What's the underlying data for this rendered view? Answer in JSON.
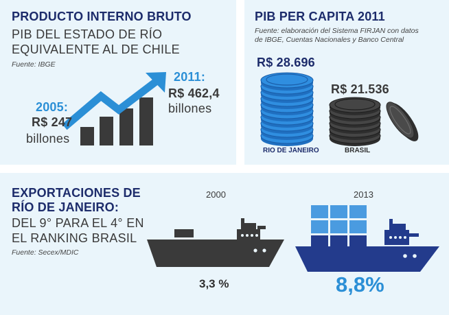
{
  "gdp": {
    "title": "PRODUCTO INTERNO BRUTO",
    "subtitle_line1": "PIB DEL ESTADO DE RÍO",
    "subtitle_line2": "EQUIVALENTE AL DE CHILE",
    "source": "Fuente: IBGE",
    "year_a": "2005:",
    "value_a": "R$ 247",
    "unit_a": "billones",
    "year_b": "2011:",
    "value_b": "R$ 462,4",
    "unit_b": "billones"
  },
  "per_capita": {
    "title": "PIB PER CAPITA 2011",
    "source_line1": "Fuente: elaboración del Sistema FIRJAN con datos",
    "source_line2": "de IBGE, Cuentas Nacionales y Banco Central",
    "rio_value": "R$ 28.696",
    "rio_label": "RIO DE JANEIRO",
    "brasil_value": "R$ 21.536",
    "brasil_label": "BRASIL"
  },
  "exports": {
    "title_line1": "EXPORTACIONES DE",
    "title_line2": "RÍO DE JANEIRO:",
    "sub_line1": "DEL 9° PARA EL 4° EN",
    "sub_line2": "EL RANKING BRASIL",
    "source": "Fuente: Secex/MDIC",
    "year_a": "2000",
    "value_a": "3,3 %",
    "year_b": "2013",
    "value_b": "8,8%"
  },
  "colors": {
    "navy": "#1d2c6b",
    "blue": "#2b8fd6",
    "dark": "#3a3a3a",
    "panel": "#eaf5fb"
  }
}
